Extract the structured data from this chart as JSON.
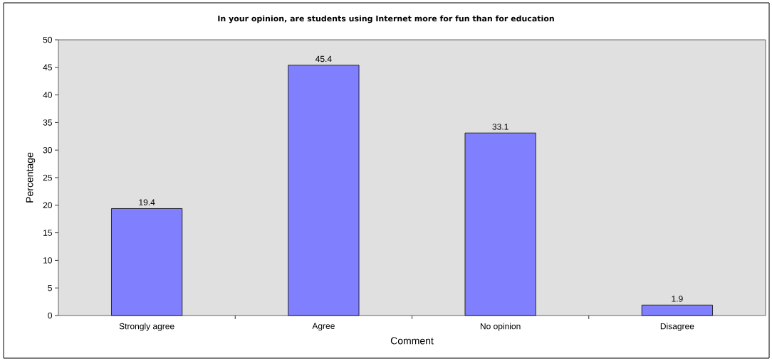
{
  "chart_data": {
    "type": "bar",
    "title": "In your opinion, are students using Internet more for fun than for education",
    "xlabel": "Comment",
    "ylabel": "Percentage",
    "categories": [
      "Strongly agree",
      "Agree",
      "No opinion",
      "Disagree"
    ],
    "values": [
      19.4,
      45.4,
      33.1,
      1.9
    ],
    "color": "#8080ff",
    "ylim": [
      0,
      50
    ],
    "yticks": [
      0,
      5,
      10,
      15,
      20,
      25,
      30,
      35,
      40,
      45,
      50
    ],
    "data_labels": true
  }
}
